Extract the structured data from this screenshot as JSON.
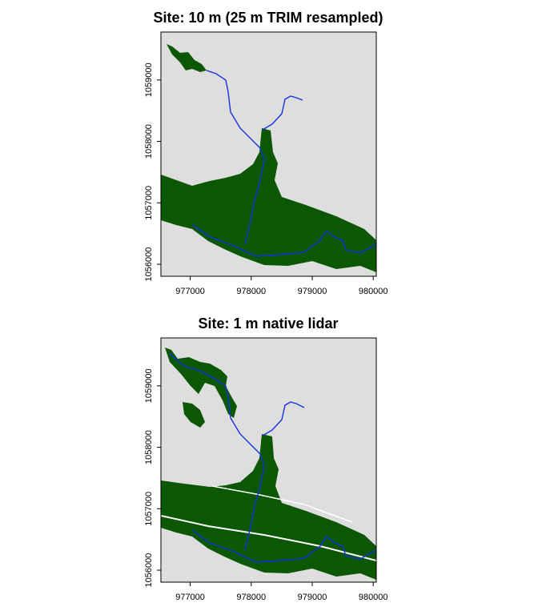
{
  "chart_data": [
    {
      "type": "map",
      "title": "Site: 10 m (25 m TRIM resampled)",
      "xlim": [
        976520,
        980050
      ],
      "ylim": [
        1055805,
        1059780
      ],
      "xticks": [
        977000,
        978000,
        979000,
        980000
      ],
      "yticks": [
        1056000,
        1057000,
        1058000,
        1059000
      ]
    },
    {
      "type": "map",
      "title": "Site: 1 m native lidar",
      "xlim": [
        976520,
        980050
      ],
      "ylim": [
        1055805,
        1059780
      ],
      "xticks": [
        977000,
        978000,
        979000,
        980000
      ],
      "yticks": [
        1056000,
        1057000,
        1058000,
        1059000
      ]
    }
  ]
}
